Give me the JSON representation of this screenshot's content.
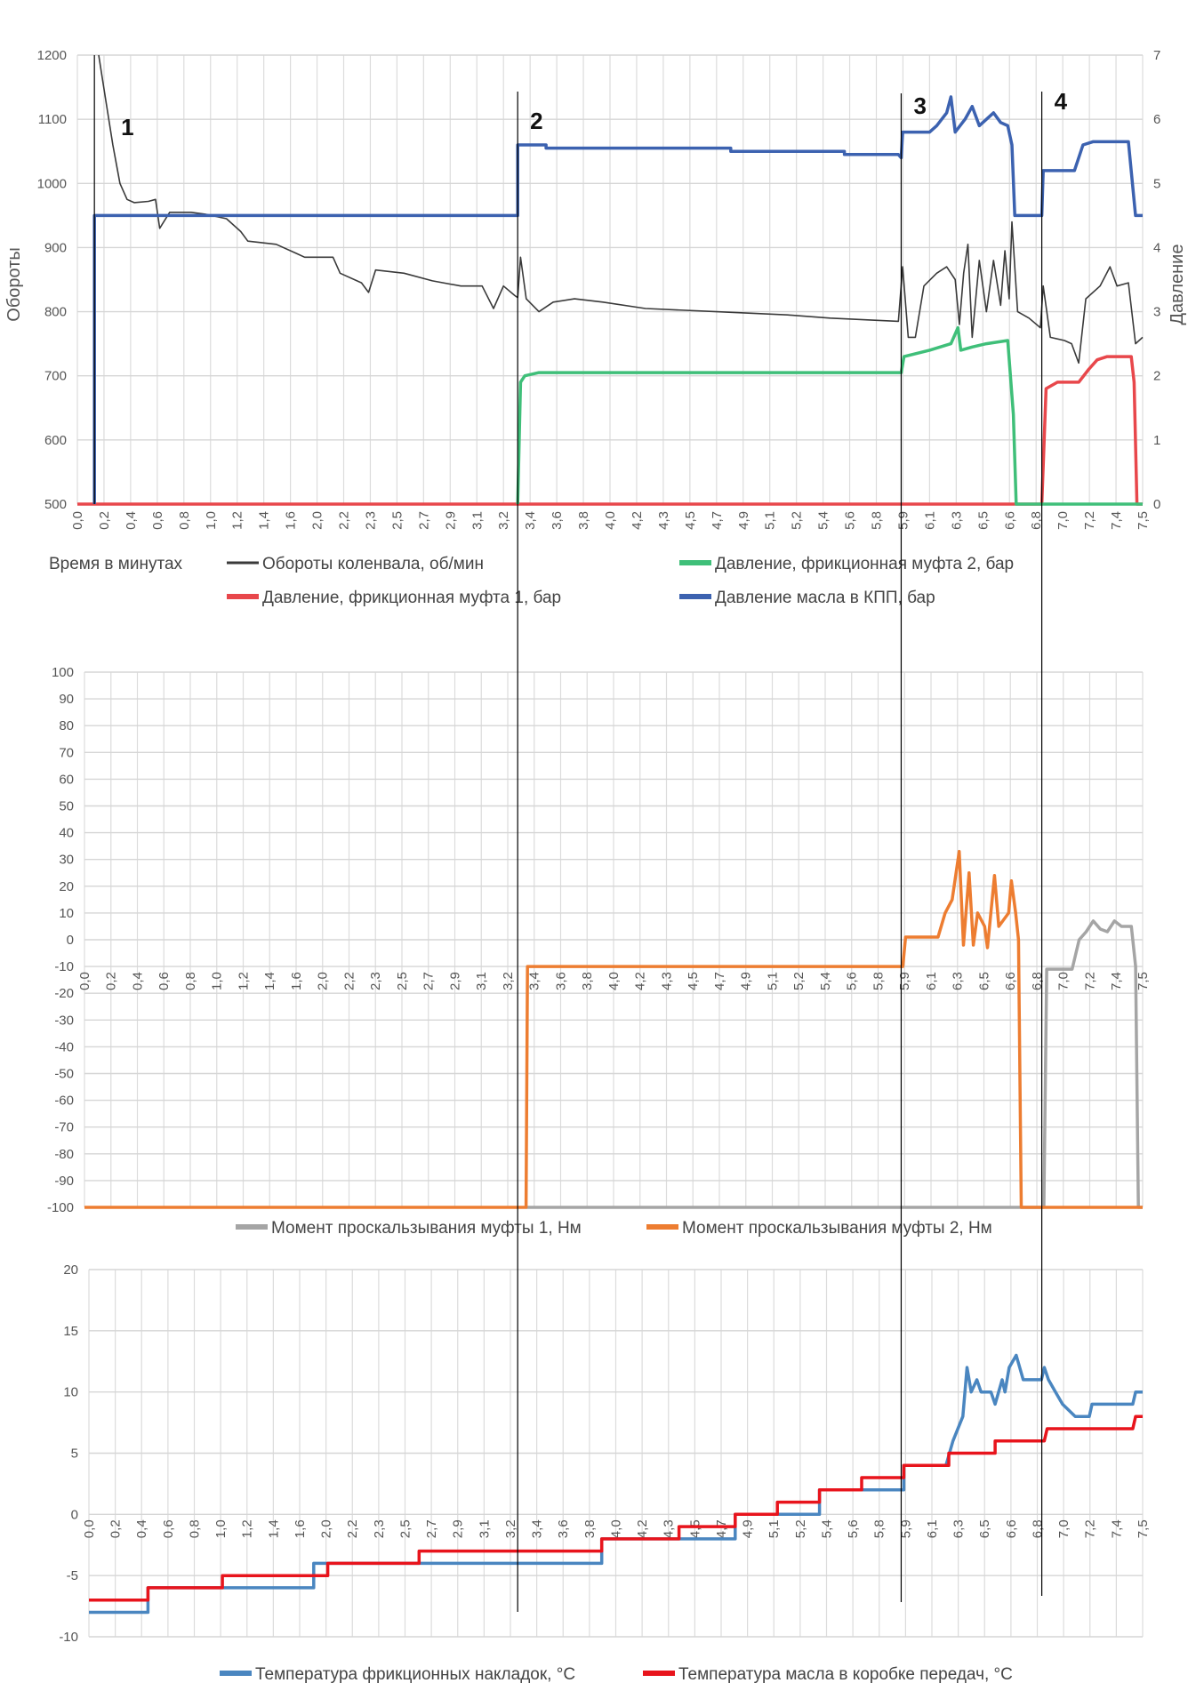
{
  "x_labels": [
    "0,0",
    "0,2",
    "0,4",
    "0,6",
    "0,8",
    "1,0",
    "1,2",
    "1,4",
    "1,6",
    "2,0",
    "2,2",
    "2,3",
    "2,5",
    "2,7",
    "2,9",
    "3,1",
    "3,2",
    "3,4",
    "3,6",
    "3,8",
    "4,0",
    "4,2",
    "4,3",
    "4,5",
    "4,7",
    "4,9",
    "5,1",
    "5,2",
    "5,4",
    "5,6",
    "5,8",
    "5,9",
    "6,1",
    "6,3",
    "6,5",
    "6,6",
    "6,8",
    "7,0",
    "7,2",
    "7,4",
    "7,5"
  ],
  "markers": [
    {
      "label": "1",
      "x": 0.12
    },
    {
      "label": "2",
      "x": 3.1
    },
    {
      "label": "3",
      "x": 5.8
    },
    {
      "label": "4",
      "x": 6.79
    }
  ],
  "chart_data": [
    {
      "type": "line",
      "title": "",
      "xlabel": "Время в минутах",
      "ylabel": "Обороты",
      "y2label": "Давление",
      "xlim": [
        0,
        7.5
      ],
      "ylim": [
        500,
        1200
      ],
      "y2lim": [
        0,
        7
      ],
      "yticks": [
        500,
        600,
        700,
        800,
        900,
        1000,
        1100,
        1200
      ],
      "y2ticks": [
        0,
        1,
        2,
        3,
        4,
        5,
        6,
        7
      ],
      "legend": "bottom",
      "series": [
        {
          "name": "Обороты коленвала, об/мин",
          "axis": "left",
          "color": "#3a3a3a",
          "points": [
            [
              0.15,
              1200
            ],
            [
              0.2,
              1130
            ],
            [
              0.25,
              1060
            ],
            [
              0.3,
              1000
            ],
            [
              0.35,
              975
            ],
            [
              0.4,
              970
            ],
            [
              0.5,
              972
            ],
            [
              0.55,
              975
            ],
            [
              0.58,
              930
            ],
            [
              0.65,
              955
            ],
            [
              0.8,
              955
            ],
            [
              0.9,
              952
            ],
            [
              1.05,
              945
            ],
            [
              1.15,
              925
            ],
            [
              1.2,
              910
            ],
            [
              1.4,
              905
            ],
            [
              1.55,
              890
            ],
            [
              1.6,
              885
            ],
            [
              1.8,
              885
            ],
            [
              1.85,
              860
            ],
            [
              2.0,
              845
            ],
            [
              2.05,
              830
            ],
            [
              2.1,
              865
            ],
            [
              2.3,
              860
            ],
            [
              2.5,
              848
            ],
            [
              2.7,
              840
            ],
            [
              2.85,
              840
            ],
            [
              2.93,
              805
            ],
            [
              3.0,
              840
            ],
            [
              3.08,
              825
            ],
            [
              3.1,
              822
            ],
            [
              3.12,
              885
            ],
            [
              3.16,
              820
            ],
            [
              3.25,
              800
            ],
            [
              3.35,
              815
            ],
            [
              3.5,
              820
            ],
            [
              3.7,
              815
            ],
            [
              4.0,
              805
            ],
            [
              4.5,
              800
            ],
            [
              5.0,
              795
            ],
            [
              5.3,
              790
            ],
            [
              5.78,
              785
            ],
            [
              5.81,
              870
            ],
            [
              5.85,
              760
            ],
            [
              5.9,
              760
            ],
            [
              5.96,
              840
            ],
            [
              6.05,
              860
            ],
            [
              6.12,
              870
            ],
            [
              6.18,
              850
            ],
            [
              6.21,
              780
            ],
            [
              6.24,
              860
            ],
            [
              6.27,
              905
            ],
            [
              6.3,
              760
            ],
            [
              6.35,
              880
            ],
            [
              6.4,
              800
            ],
            [
              6.45,
              880
            ],
            [
              6.5,
              810
            ],
            [
              6.53,
              895
            ],
            [
              6.56,
              820
            ],
            [
              6.58,
              940
            ],
            [
              6.62,
              800
            ],
            [
              6.7,
              790
            ],
            [
              6.78,
              775
            ],
            [
              6.8,
              840
            ],
            [
              6.85,
              760
            ],
            [
              6.95,
              755
            ],
            [
              7.0,
              750
            ],
            [
              7.05,
              720
            ],
            [
              7.1,
              820
            ],
            [
              7.2,
              840
            ],
            [
              7.27,
              870
            ],
            [
              7.32,
              840
            ],
            [
              7.4,
              845
            ],
            [
              7.45,
              750
            ],
            [
              7.5,
              760
            ]
          ]
        },
        {
          "name": "Давление, фрикционная муфта 1, бар",
          "axis": "right",
          "color": "#e8474b",
          "points": [
            [
              0,
              0
            ],
            [
              6.79,
              0
            ],
            [
              6.82,
              1.8
            ],
            [
              6.9,
              1.9
            ],
            [
              7.05,
              1.9
            ],
            [
              7.12,
              2.1
            ],
            [
              7.18,
              2.25
            ],
            [
              7.25,
              2.3
            ],
            [
              7.42,
              2.3
            ],
            [
              7.44,
              1.9
            ],
            [
              7.46,
              0
            ],
            [
              7.5,
              0
            ]
          ]
        },
        {
          "name": "Давление, фрикционная муфта 2, бар",
          "axis": "right",
          "color": "#3fbf79",
          "points": [
            [
              3.1,
              0
            ],
            [
              3.12,
              1.9
            ],
            [
              3.15,
              2.0
            ],
            [
              3.25,
              2.05
            ],
            [
              5.8,
              2.05
            ],
            [
              5.82,
              2.3
            ],
            [
              6.0,
              2.4
            ],
            [
              6.15,
              2.5
            ],
            [
              6.2,
              2.75
            ],
            [
              6.22,
              2.4
            ],
            [
              6.3,
              2.45
            ],
            [
              6.4,
              2.5
            ],
            [
              6.55,
              2.55
            ],
            [
              6.59,
              1.4
            ],
            [
              6.61,
              0
            ],
            [
              7.5,
              0
            ]
          ]
        },
        {
          "name": "Давление масла в КПП, бар",
          "axis": "right",
          "color": "#3c62b0",
          "points": [
            [
              0.12,
              0
            ],
            [
              0.12,
              4.5
            ],
            [
              3.1,
              4.5
            ],
            [
              3.1,
              5.6
            ],
            [
              3.3,
              5.6
            ],
            [
              3.3,
              5.55
            ],
            [
              4.6,
              5.55
            ],
            [
              4.6,
              5.5
            ],
            [
              5.4,
              5.5
            ],
            [
              5.4,
              5.45
            ],
            [
              5.78,
              5.45
            ],
            [
              5.8,
              5.4
            ],
            [
              5.81,
              5.8
            ],
            [
              6.0,
              5.8
            ],
            [
              6.05,
              5.9
            ],
            [
              6.12,
              6.1
            ],
            [
              6.15,
              6.35
            ],
            [
              6.18,
              5.8
            ],
            [
              6.25,
              6.0
            ],
            [
              6.3,
              6.2
            ],
            [
              6.35,
              5.9
            ],
            [
              6.45,
              6.1
            ],
            [
              6.5,
              5.95
            ],
            [
              6.55,
              5.9
            ],
            [
              6.58,
              5.6
            ],
            [
              6.6,
              4.5
            ],
            [
              6.79,
              4.5
            ],
            [
              6.8,
              5.2
            ],
            [
              7.02,
              5.2
            ],
            [
              7.08,
              5.6
            ],
            [
              7.15,
              5.65
            ],
            [
              7.4,
              5.65
            ],
            [
              7.45,
              4.5
            ],
            [
              7.5,
              4.5
            ]
          ]
        }
      ]
    },
    {
      "type": "line",
      "title": "",
      "xlim": [
        0,
        7.5
      ],
      "ylim": [
        -100,
        100
      ],
      "yticks": [
        -100,
        -90,
        -80,
        -70,
        -60,
        -50,
        -40,
        -30,
        -20,
        -10,
        0,
        10,
        20,
        30,
        40,
        50,
        60,
        70,
        80,
        90,
        100
      ],
      "legend": "bottom",
      "series": [
        {
          "name": "Момент проскальзывания муфты 1, Нм",
          "color": "#a5a5a5",
          "points": [
            [
              3.13,
              -100
            ],
            [
              6.8,
              -100
            ],
            [
              6.82,
              -11
            ],
            [
              7.0,
              -11
            ],
            [
              7.05,
              0
            ],
            [
              7.1,
              3
            ],
            [
              7.15,
              7
            ],
            [
              7.2,
              4
            ],
            [
              7.25,
              3
            ],
            [
              7.3,
              7
            ],
            [
              7.35,
              5
            ],
            [
              7.42,
              5
            ],
            [
              7.45,
              -10
            ],
            [
              7.47,
              -100
            ],
            [
              7.5,
              -100
            ]
          ]
        },
        {
          "name": "Момент проскальзывания муфты 2, Нм",
          "color": "#ed7d31",
          "points": [
            [
              0,
              -100
            ],
            [
              3.13,
              -100
            ],
            [
              3.14,
              -10
            ],
            [
              5.8,
              -10
            ],
            [
              5.82,
              1
            ],
            [
              6.05,
              1
            ],
            [
              6.1,
              10
            ],
            [
              6.15,
              15
            ],
            [
              6.2,
              33
            ],
            [
              6.23,
              -2
            ],
            [
              6.27,
              25
            ],
            [
              6.3,
              -2
            ],
            [
              6.33,
              10
            ],
            [
              6.38,
              5
            ],
            [
              6.4,
              -3
            ],
            [
              6.45,
              24
            ],
            [
              6.48,
              5
            ],
            [
              6.55,
              10
            ],
            [
              6.57,
              22
            ],
            [
              6.6,
              10
            ],
            [
              6.62,
              0
            ],
            [
              6.64,
              -100
            ],
            [
              7.5,
              -100
            ]
          ]
        }
      ]
    },
    {
      "type": "line",
      "title": "",
      "xlim": [
        0,
        7.5
      ],
      "ylim": [
        -10,
        20
      ],
      "yticks": [
        -10,
        -5,
        0,
        5,
        10,
        15,
        20
      ],
      "legend": "bottom",
      "series": [
        {
          "name": "Температура фрикционных накладок, °C",
          "color": "#4a86c0",
          "points": [
            [
              0,
              -8
            ],
            [
              0.42,
              -8
            ],
            [
              0.42,
              -6
            ],
            [
              1.6,
              -6
            ],
            [
              1.6,
              -4
            ],
            [
              3.65,
              -4
            ],
            [
              3.65,
              -2
            ],
            [
              4.6,
              -2
            ],
            [
              4.6,
              0
            ],
            [
              5.2,
              0
            ],
            [
              5.2,
              2
            ],
            [
              5.8,
              2
            ],
            [
              5.8,
              4
            ],
            [
              6.1,
              4
            ],
            [
              6.15,
              6
            ],
            [
              6.22,
              8
            ],
            [
              6.25,
              12
            ],
            [
              6.28,
              10
            ],
            [
              6.32,
              11
            ],
            [
              6.35,
              10
            ],
            [
              6.42,
              10
            ],
            [
              6.45,
              9
            ],
            [
              6.5,
              11
            ],
            [
              6.52,
              10
            ],
            [
              6.55,
              12
            ],
            [
              6.6,
              13
            ],
            [
              6.65,
              11
            ],
            [
              6.78,
              11
            ],
            [
              6.8,
              12
            ],
            [
              6.83,
              11
            ],
            [
              6.88,
              10
            ],
            [
              6.93,
              9
            ],
            [
              7.02,
              8
            ],
            [
              7.12,
              8
            ],
            [
              7.14,
              9
            ],
            [
              7.43,
              9
            ],
            [
              7.45,
              10
            ],
            [
              7.5,
              10
            ]
          ]
        },
        {
          "name": "Температура масла в коробке передач, °C",
          "color": "#e8141c",
          "points": [
            [
              0,
              -7
            ],
            [
              0.42,
              -7
            ],
            [
              0.42,
              -6
            ],
            [
              0.95,
              -6
            ],
            [
              0.95,
              -5
            ],
            [
              1.7,
              -5
            ],
            [
              1.7,
              -4
            ],
            [
              2.35,
              -4
            ],
            [
              2.35,
              -3
            ],
            [
              3.65,
              -3
            ],
            [
              3.65,
              -2
            ],
            [
              4.2,
              -2
            ],
            [
              4.2,
              -1
            ],
            [
              4.6,
              -1
            ],
            [
              4.6,
              0
            ],
            [
              4.9,
              0
            ],
            [
              4.9,
              1
            ],
            [
              5.2,
              1
            ],
            [
              5.2,
              2
            ],
            [
              5.5,
              2
            ],
            [
              5.5,
              3
            ],
            [
              5.8,
              3
            ],
            [
              5.8,
              4
            ],
            [
              6.12,
              4
            ],
            [
              6.12,
              5
            ],
            [
              6.45,
              5
            ],
            [
              6.45,
              6
            ],
            [
              6.8,
              6
            ],
            [
              6.82,
              7
            ],
            [
              7.43,
              7
            ],
            [
              7.45,
              8
            ],
            [
              7.5,
              8
            ]
          ]
        }
      ]
    }
  ]
}
